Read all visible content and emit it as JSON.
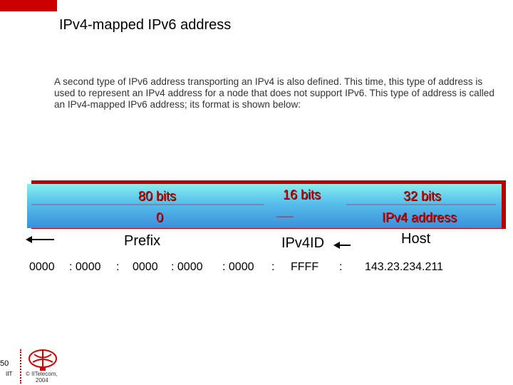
{
  "title": "IPv4-mapped IPv6 address",
  "paragraph": "A second type of IPv6 address transporting an IPv4 is also defined. This time, this type of address is used to represent an IPv4 address for a node that does not support IPv6. This type of address is called an IPv4-mapped IPv6 address; its format is shown below:",
  "band": {
    "seg1": {
      "bits": "80 bits",
      "value": "0"
    },
    "seg2": {
      "bits": "16 bits",
      "value": "----------"
    },
    "seg3": {
      "bits": "32 bits",
      "value": "IPv4 address"
    }
  },
  "labels": {
    "prefix": "Prefix",
    "id": "IPv4ID",
    "host": "Host"
  },
  "address": {
    "g1": "0000",
    "g2": ": 0000",
    "g3": ":",
    "g4": "0000",
    "g5": ": 0000",
    "g6": ": 0000",
    "g7": ":",
    "g8": "FFFF",
    "g9": ":",
    "g10": "143.23.234.211"
  },
  "footer": {
    "page": "50",
    "org": "IIT",
    "copyright_line1": "© IITelecom,",
    "copyright_line2": "2004"
  },
  "colors": {
    "accent": "#cc0000",
    "band_top": "#88eef2",
    "band_bottom": "#3b8fda"
  }
}
